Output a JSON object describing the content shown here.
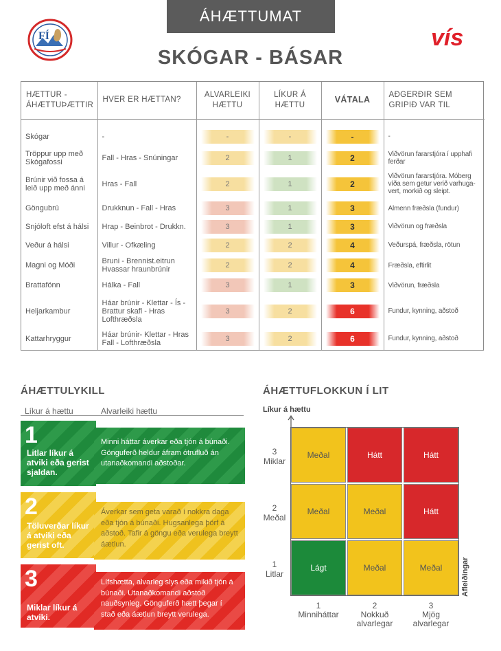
{
  "header": {
    "badge": "ÁHÆTTUMAT",
    "title": "SKÓGAR - BÁSAR"
  },
  "logos": {
    "left": "FÍ",
    "right": "vís"
  },
  "table": {
    "headers": [
      "HÆTTUR - ÁHÆTTUÞÆTTIR",
      "HVER ER HÆTTAN?",
      "ALVARLEIKI HÆTTU",
      "LÍKUR Á HÆTTU",
      "VÁTALA",
      "AÐGERÐIR SEM GRIPIÐ VAR TIL"
    ],
    "rows": [
      {
        "hazard": "Skógar",
        "what": "-",
        "severity": "-",
        "likelihood": "-",
        "risk": "-",
        "action": "-",
        "sev_c": "y",
        "lik_c": "y",
        "risk_c": "o"
      },
      {
        "hazard": "Tröppur upp með Skógafossi",
        "what": "Fall - Hras - Snúningar",
        "severity": "2",
        "likelihood": "1",
        "risk": "2",
        "action": "Viðvörun fararstjóra í upphafi ferðar",
        "sev_c": "y",
        "lik_c": "g",
        "risk_c": "o"
      },
      {
        "hazard": "Brúnir við fossa á leið upp með ánni",
        "what": "Hras - Fall",
        "severity": "2",
        "likelihood": "1",
        "risk": "2",
        "action": "Viðvörun fararstjóra. Móberg víða sem getur verið varhuga-vert, morkið og sleipt.",
        "sev_c": "y",
        "lik_c": "g",
        "risk_c": "o"
      },
      {
        "hazard": "Göngubrú",
        "what": "Drukknun - Fall - Hras",
        "severity": "3",
        "likelihood": "1",
        "risk": "3",
        "action": "Almenn fræðsla (fundur)",
        "sev_c": "p",
        "lik_c": "g",
        "risk_c": "o"
      },
      {
        "hazard": "Snjóloft efst á hálsi",
        "what": "Hrap - Beinbrot - Drukkn.",
        "severity": "3",
        "likelihood": "1",
        "risk": "3",
        "action": "Viðvörun og fræðsla",
        "sev_c": "p",
        "lik_c": "g",
        "risk_c": "o"
      },
      {
        "hazard": "Veður á hálsi",
        "what": "Villur - Ofkæling",
        "severity": "2",
        "likelihood": "2",
        "risk": "4",
        "action": "Veðurspá, fræðsla, rötun",
        "sev_c": "y",
        "lik_c": "y",
        "risk_c": "o"
      },
      {
        "hazard": "Magni og Móði",
        "what": "Bruni - Brennist.eitrun Hvassar hraunbrúnir",
        "severity": "2",
        "likelihood": "2",
        "risk": "4",
        "action": "Fræðsla, eftirlit",
        "sev_c": "y",
        "lik_c": "y",
        "risk_c": "o"
      },
      {
        "hazard": "Brattafönn",
        "what": "Hálka - Fall",
        "severity": "3",
        "likelihood": "1",
        "risk": "3",
        "action": "Viðvörun, fræðsla",
        "sev_c": "p",
        "lik_c": "g",
        "risk_c": "o"
      },
      {
        "hazard": "Heljarkambur",
        "what": "Háar brúnir - Klettar - Ís - Brattur skafl - Hras Lofthræðsla",
        "severity": "3",
        "likelihood": "2",
        "risk": "6",
        "action": "Fundur, kynning, aðstoð",
        "sev_c": "p",
        "lik_c": "y",
        "risk_c": "r"
      },
      {
        "hazard": "Kattarhryggur",
        "what": "Háar brúnir- Klettar - Hras Fall - Lofthræðsla",
        "severity": "3",
        "likelihood": "2",
        "risk": "6",
        "action": "Fundur, kynning, aðstoð",
        "sev_c": "p",
        "lik_c": "y",
        "risk_c": "r"
      }
    ]
  },
  "key": {
    "title": "ÁHÆTTULYKILL",
    "col1": "Líkur á hættu",
    "col2": "Alvarleiki hættu",
    "items": [
      {
        "num": "1",
        "label": "Litlar líkur á atviki eða gerist sjaldan.",
        "desc": "Minni háttar áverkar eða tjón á búnaði. Gönguferð heldur áfram ótrufluð án utanaðkomandi aðstoðar."
      },
      {
        "num": "2",
        "label": "Töluverðar líkur á atviki eða gerist oft.",
        "desc": "Áverkar sem geta varað í nokkra daga eða tjón á búnaði. Hugsanlega þörf á aðstoð. Tafir á göngu eða verulega breytt áætlun."
      },
      {
        "num": "3",
        "label": "Miklar líkur á atviki.",
        "desc": "Lífshætta, alvarleg slys eða mikið tjón á búnaði. Utanaðkomandi aðstoð nauðsynleg. Gönguferð hætt þegar í stað eða áætlun breytt verulega."
      }
    ]
  },
  "matrix": {
    "title": "ÁHÆTTUFLOKKUN Í LIT",
    "y_label": "Líkur á hættu",
    "x_label": "Afleiðingar",
    "rows": [
      {
        "num": "3",
        "label": "Miklar",
        "cells": [
          "Meðal",
          "Hátt",
          "Hátt"
        ],
        "colors": [
          "y",
          "r",
          "r"
        ]
      },
      {
        "num": "2",
        "label": "Meðal",
        "cells": [
          "Meðal",
          "Meðal",
          "Hátt"
        ],
        "colors": [
          "y",
          "y",
          "r"
        ]
      },
      {
        "num": "1",
        "label": "Litlar",
        "cells": [
          "Lágt",
          "Meðal",
          "Meðal"
        ],
        "colors": [
          "g",
          "y",
          "y"
        ]
      }
    ],
    "cols": [
      {
        "num": "1",
        "label": "Minniháttar"
      },
      {
        "num": "2",
        "label": "Nokkuð alvarlegar"
      },
      {
        "num": "3",
        "label": "Mjög alvarlegar"
      }
    ]
  }
}
